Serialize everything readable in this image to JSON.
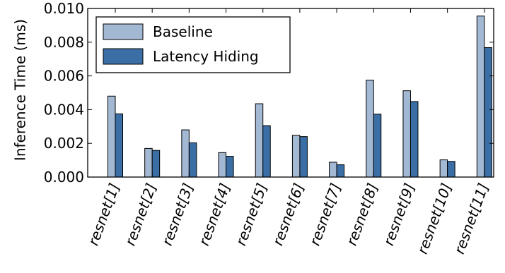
{
  "chart_data": {
    "type": "bar",
    "title": "",
    "xlabel": "",
    "ylabel": "Inference Time (ms)",
    "ylim": [
      0,
      0.01
    ],
    "yticks": [
      "0.000",
      "0.002",
      "0.004",
      "0.006",
      "0.008",
      "0.010"
    ],
    "categories": [
      "resnet[1]",
      "resnet[2]",
      "resnet[3]",
      "resnet[4]",
      "resnet[5]",
      "resnet[6]",
      "resnet[7]",
      "resnet[8]",
      "resnet[9]",
      "resnet[10]",
      "resnet[11]"
    ],
    "series": [
      {
        "name": "Baseline",
        "color": "#a3b9d3",
        "values": [
          0.0048,
          0.0017,
          0.0028,
          0.00145,
          0.00435,
          0.00248,
          0.00088,
          0.00575,
          0.00512,
          0.00102,
          0.00955
        ]
      },
      {
        "name": "Latency Hiding",
        "color": "#3a6ea5",
        "values": [
          0.00375,
          0.00158,
          0.00203,
          0.00123,
          0.00305,
          0.0024,
          0.00073,
          0.00373,
          0.00448,
          0.00093,
          0.00768
        ]
      }
    ],
    "grid": false,
    "legend_position": "top-left"
  }
}
